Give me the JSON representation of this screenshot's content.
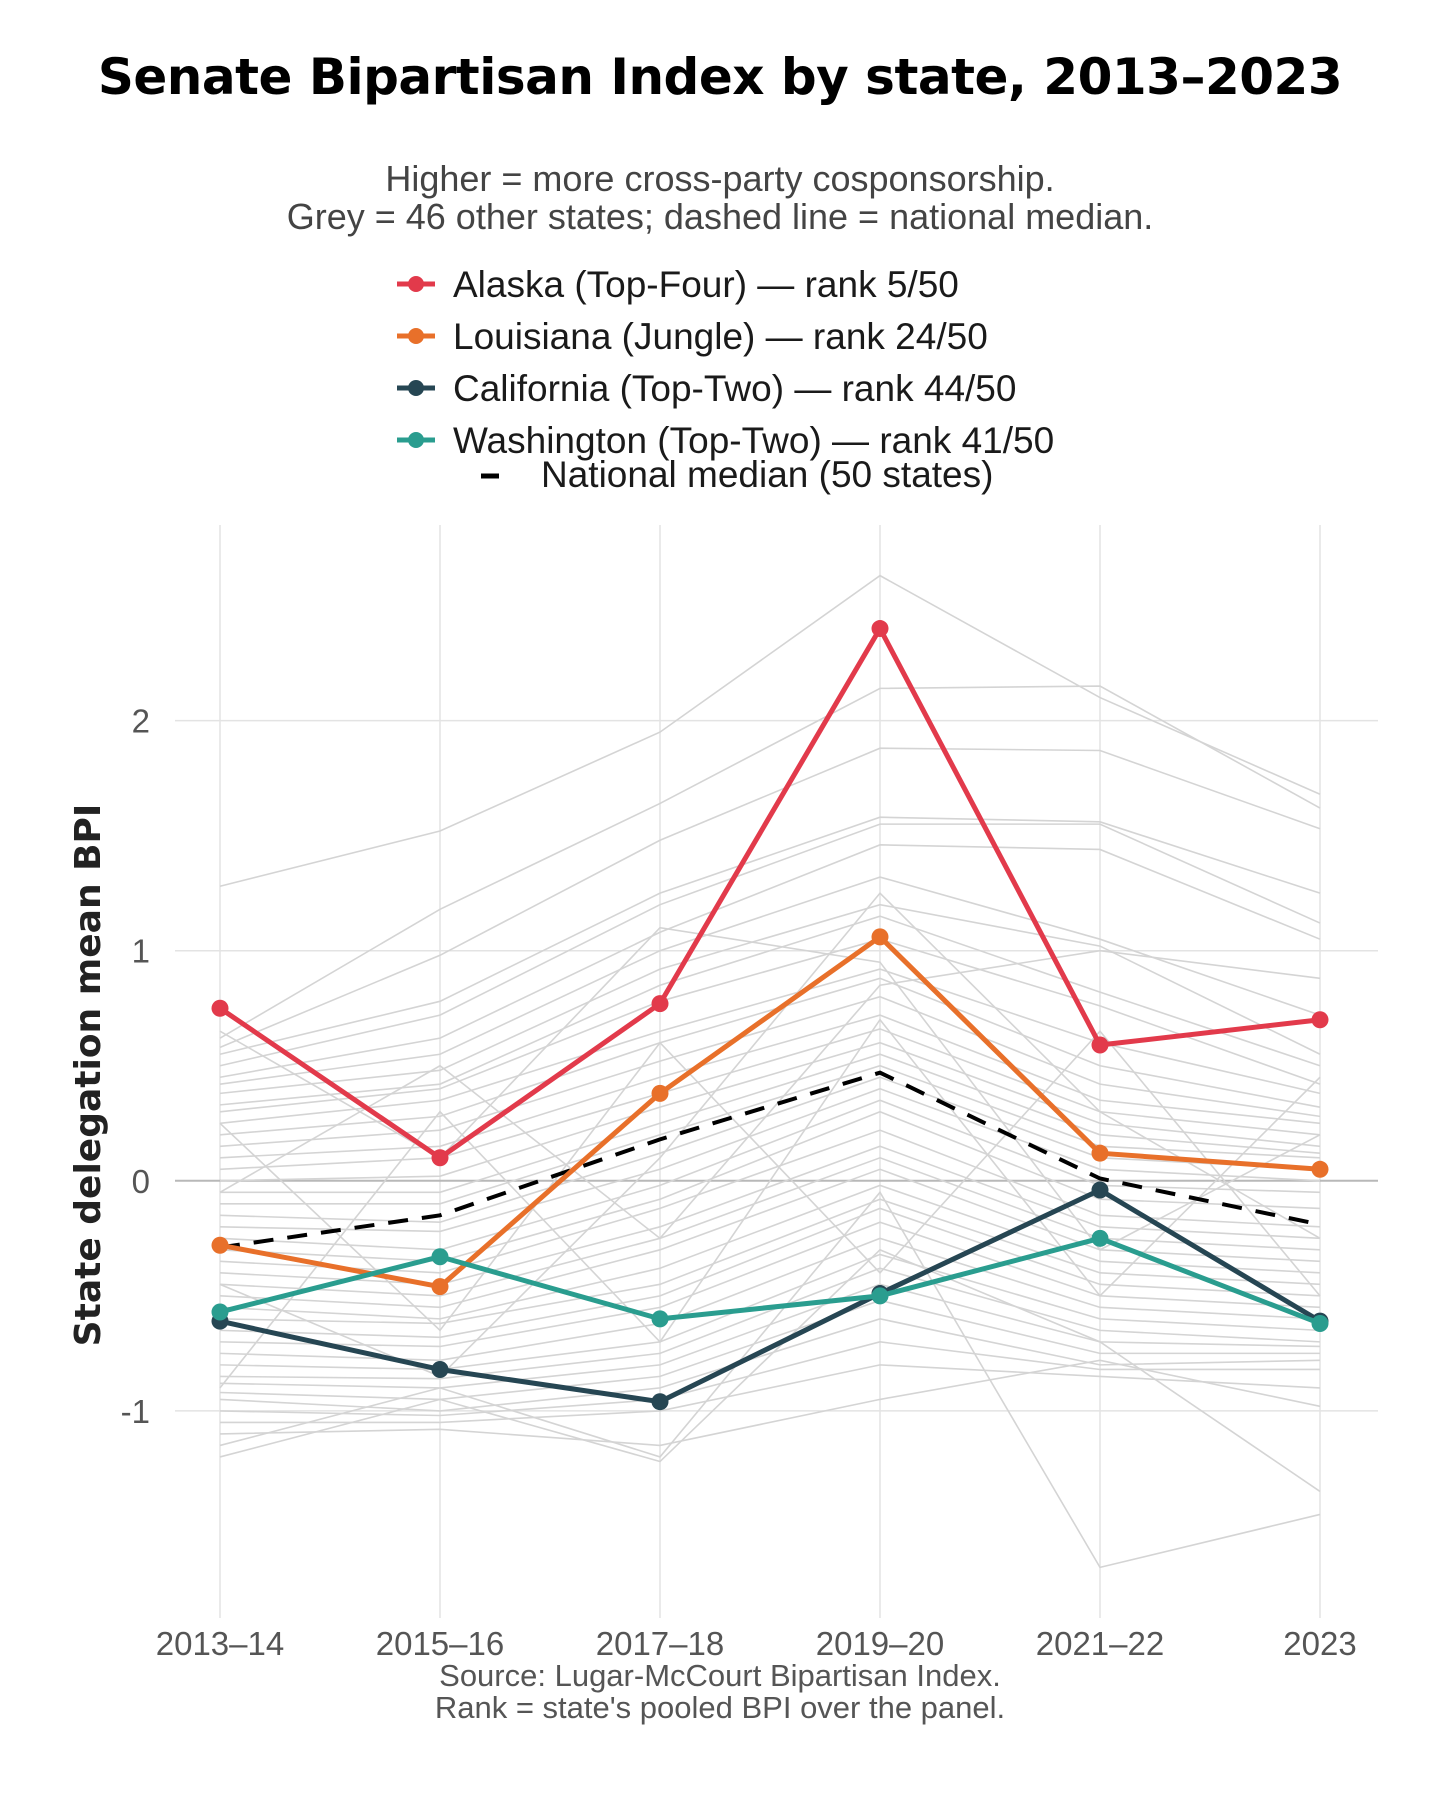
{
  "title": "Senate Bipartisan Index by state, 2013–2023",
  "subtitle": {
    "line1": "Higher = more cross-party cosponsorship.",
    "line2": "Grey = 46 other states; dashed line = national median."
  },
  "legend": [
    {
      "label": "Alaska (Top-Four) — rank 5/50",
      "color": "#e23a4b"
    },
    {
      "label": "Louisiana (Jungle) — rank 24/50",
      "color": "#e8702a"
    },
    {
      "label": "California (Top-Two) — rank 44/50",
      "color": "#264653"
    },
    {
      "label": "Washington (Top-Two) — rank 41/50",
      "color": "#2a9d8f"
    },
    {
      "label": "National median (50 states)",
      "color": "#000000"
    }
  ],
  "source": {
    "line1": "Source: Lugar-McCourt Bipartisan Index.",
    "line2": "Rank = state's pooled BPI over the panel."
  },
  "chart_data": {
    "type": "line",
    "title": "Senate Bipartisan Index by state, 2013–2023",
    "xlabel": "",
    "ylabel": "State delegation mean BPI",
    "categories": [
      "2013–14",
      "2015–16",
      "2017–18",
      "2019–20",
      "2021–22",
      "2023"
    ],
    "yticks": [
      -1,
      0,
      1,
      2
    ],
    "ylim": [
      -1.9,
      2.85
    ],
    "grid": true,
    "zero_line": true,
    "series": [
      {
        "name": "Alaska (Top-Four) — rank 5/50",
        "color": "#e23a4b",
        "values": [
          0.75,
          0.1,
          0.77,
          2.4,
          0.59,
          0.7
        ]
      },
      {
        "name": "Louisiana (Jungle) — rank 24/50",
        "color": "#e8702a",
        "values": [
          -0.28,
          -0.46,
          0.38,
          1.06,
          0.12,
          0.05
        ]
      },
      {
        "name": "California (Top-Two) — rank 44/50",
        "color": "#264653",
        "values": [
          -0.61,
          -0.82,
          -0.96,
          -0.49,
          -0.04,
          -0.61
        ]
      },
      {
        "name": "Washington (Top-Two) — rank 41/50",
        "color": "#2a9d8f",
        "values": [
          -0.57,
          -0.33,
          -0.6,
          -0.5,
          -0.25,
          -0.62
        ]
      }
    ],
    "median": {
      "name": "National median (50 states)",
      "color": "#000000",
      "values": [
        -0.29,
        -0.15,
        0.18,
        0.47,
        0.01,
        -0.19
      ]
    },
    "background_series": [
      [
        1.28,
        1.52,
        1.95,
        2.63,
        2.1,
        1.68
      ],
      [
        0.62,
        1.18,
        1.64,
        2.14,
        2.15,
        1.62
      ],
      [
        0.58,
        0.98,
        1.48,
        1.88,
        1.87,
        1.53
      ],
      [
        0.55,
        0.78,
        1.25,
        1.58,
        1.56,
        1.25
      ],
      [
        0.5,
        0.72,
        1.2,
        1.55,
        1.55,
        1.12
      ],
      [
        0.45,
        0.62,
        1.08,
        1.46,
        1.44,
        1.05
      ],
      [
        0.42,
        0.55,
        1.0,
        1.32,
        1.05,
        0.72
      ],
      [
        0.38,
        0.48,
        0.92,
        1.2,
        1.02,
        0.55
      ],
      [
        0.33,
        0.42,
        0.85,
        1.15,
        0.82,
        0.5
      ],
      [
        0.3,
        0.4,
        0.78,
        1.05,
        0.76,
        0.42
      ],
      [
        0.25,
        0.35,
        0.65,
        0.92,
        0.6,
        0.38
      ],
      [
        0.2,
        0.28,
        0.6,
        0.88,
        0.5,
        0.32
      ],
      [
        0.15,
        0.22,
        0.52,
        0.8,
        0.42,
        0.28
      ],
      [
        0.1,
        0.15,
        0.45,
        0.72,
        0.35,
        0.25
      ],
      [
        0.05,
        0.1,
        0.38,
        0.66,
        0.3,
        0.2
      ],
      [
        0.0,
        0.02,
        0.32,
        0.6,
        0.25,
        0.15
      ],
      [
        -0.05,
        -0.05,
        0.25,
        0.55,
        0.2,
        0.12
      ],
      [
        -0.1,
        -0.1,
        0.2,
        0.5,
        0.15,
        0.1
      ],
      [
        -0.15,
        -0.18,
        0.12,
        0.45,
        0.1,
        0.05
      ],
      [
        -0.2,
        -0.22,
        0.05,
        0.4,
        0.05,
        0.0
      ],
      [
        -0.25,
        -0.3,
        -0.02,
        0.35,
        -0.02,
        -0.05
      ],
      [
        -0.3,
        -0.35,
        -0.08,
        0.3,
        -0.08,
        -0.12
      ],
      [
        -0.35,
        -0.4,
        -0.12,
        0.22,
        -0.15,
        -0.2
      ],
      [
        -0.4,
        -0.45,
        -0.2,
        0.15,
        -0.2,
        -0.25
      ],
      [
        -0.45,
        -0.5,
        -0.25,
        0.1,
        -0.25,
        -0.3
      ],
      [
        -0.5,
        -0.55,
        -0.3,
        0.05,
        -0.3,
        -0.35
      ],
      [
        -0.55,
        -0.6,
        -0.38,
        -0.02,
        -0.35,
        -0.4
      ],
      [
        -0.6,
        -0.62,
        -0.45,
        -0.08,
        -0.4,
        -0.45
      ],
      [
        -0.65,
        -0.68,
        -0.5,
        -0.12,
        -0.45,
        -0.5
      ],
      [
        -0.7,
        -0.72,
        -0.55,
        -0.18,
        -0.5,
        -0.55
      ],
      [
        -0.75,
        -0.78,
        -0.62,
        -0.25,
        -0.55,
        -0.6
      ],
      [
        -0.8,
        -0.82,
        -0.7,
        -0.32,
        -0.6,
        -0.65
      ],
      [
        -0.85,
        -0.86,
        -0.75,
        -0.38,
        -0.65,
        -0.7
      ],
      [
        -0.88,
        -0.9,
        -0.8,
        -0.45,
        -0.7,
        -0.72
      ],
      [
        -0.92,
        -0.95,
        -0.85,
        -0.52,
        -0.75,
        -0.75
      ],
      [
        -0.95,
        -1.0,
        -0.9,
        -0.6,
        -0.8,
        -0.78
      ],
      [
        -1.0,
        -1.02,
        -0.95,
        -0.7,
        -0.82,
        -0.82
      ],
      [
        -1.05,
        -1.05,
        -1.0,
        -0.8,
        -0.85,
        -0.9
      ],
      [
        -1.1,
        -1.08,
        -1.15,
        -0.95,
        -0.78,
        -0.98
      ],
      [
        -1.15,
        -0.9,
        -1.2,
        -0.05,
        -1.68,
        -1.45
      ],
      [
        -1.2,
        -0.95,
        -1.22,
        -0.3,
        -0.7,
        -1.35
      ],
      [
        -0.05,
        0.5,
        -0.25,
        0.85,
        1.0,
        0.88
      ],
      [
        0.25,
        -0.65,
        0.6,
        -0.4,
        0.65,
        -0.5
      ],
      [
        -0.9,
        0.3,
        -0.7,
        0.7,
        -0.5,
        0.45
      ],
      [
        0.65,
        0.1,
        1.1,
        0.95,
        -0.3,
        0.2
      ],
      [
        -0.45,
        -0.85,
        0.1,
        1.25,
        0.3,
        -0.25
      ]
    ]
  }
}
